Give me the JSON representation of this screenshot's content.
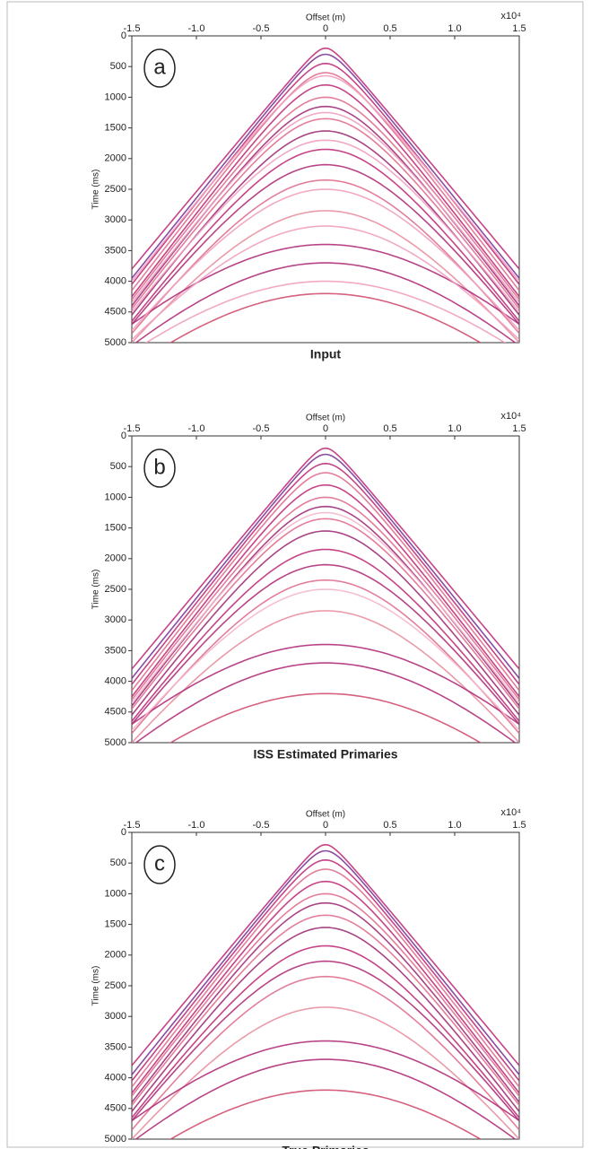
{
  "chart_data": [
    {
      "type": "gather",
      "panel_label": "a",
      "title": "Input",
      "xlabel": "Offset (m)",
      "ylabel": "Time (ms)",
      "x_multiplier": "x10⁴",
      "xlim": [
        -1.5,
        1.5
      ],
      "ylim": [
        0,
        5000
      ],
      "xticks": [
        -1.5,
        {
          "value": -1,
          "label": "-1.0"
        },
        -0.5,
        0,
        0.5,
        {
          "value": 1,
          "label": "1.0"
        },
        1.5
      ],
      "yticks": [
        0,
        500,
        1000,
        1500,
        2000,
        2500,
        3000,
        3500,
        4000,
        4500,
        5000
      ],
      "events": [
        {
          "t0": 200,
          "t_edge": 3800,
          "color": "#c0307a"
        },
        {
          "t0": 300,
          "t_edge": 3950,
          "color": "#7a3a9a"
        },
        {
          "t0": 450,
          "t_edge": 4050,
          "color": "#c0307a"
        },
        {
          "t0": 600,
          "t_edge": 4150,
          "color": "#e07090"
        },
        {
          "t0": 800,
          "t_edge": 4250,
          "color": "#c0307a"
        },
        {
          "t0": 1000,
          "t_edge": 4300,
          "color": "#e07090"
        },
        {
          "t0": 1150,
          "t_edge": 4400,
          "color": "#a0307a"
        },
        {
          "t0": 1350,
          "t_edge": 4450,
          "color": "#e07090"
        },
        {
          "t0": 1550,
          "t_edge": 4550,
          "color": "#a0307a"
        },
        {
          "t0": 1850,
          "t_edge": 4650,
          "color": "#c0307a"
        },
        {
          "t0": 2100,
          "t_edge": 4700,
          "color": "#b0307a"
        },
        {
          "t0": 2350,
          "t_edge": 4850,
          "color": "#e07090"
        },
        {
          "t0": 2850,
          "t_edge": 5000,
          "color": "#e890a0"
        },
        {
          "t0": 3400,
          "t_edge": 4700,
          "color": "#b0307a"
        },
        {
          "t0": 3700,
          "t_edge": 5050,
          "color": "#b0307a"
        },
        {
          "t0": 4200,
          "t_edge": 5400,
          "color": "#d05070"
        },
        {
          "t0": 650,
          "t_edge": 4000,
          "color": "#f0a0c0"
        },
        {
          "t0": 1250,
          "t_edge": 4350,
          "color": "#f0a0c0"
        },
        {
          "t0": 1700,
          "t_edge": 4500,
          "color": "#f0a0c0"
        },
        {
          "t0": 2500,
          "t_edge": 4800,
          "color": "#f0a0c0"
        },
        {
          "t0": 3100,
          "t_edge": 4950,
          "color": "#f0a0c0"
        },
        {
          "t0": 4000,
          "t_edge": 5150,
          "color": "#f0a0c0"
        }
      ]
    },
    {
      "type": "gather",
      "panel_label": "b",
      "title": "ISS Estimated Primaries",
      "xlabel": "Offset (m)",
      "ylabel": "Time (ms)",
      "x_multiplier": "x10⁴",
      "xlim": [
        -1.5,
        1.5
      ],
      "ylim": [
        0,
        5000
      ],
      "xticks": [
        -1.5,
        {
          "value": -1,
          "label": "-1.0"
        },
        -0.5,
        0,
        0.5,
        {
          "value": 1,
          "label": "1.0"
        },
        1.5
      ],
      "yticks": [
        0,
        500,
        1000,
        1500,
        2000,
        2500,
        3000,
        3500,
        4000,
        4500,
        5000
      ],
      "events": [
        {
          "t0": 200,
          "t_edge": 3800,
          "color": "#c0307a"
        },
        {
          "t0": 300,
          "t_edge": 3950,
          "color": "#7a3a9a"
        },
        {
          "t0": 450,
          "t_edge": 4050,
          "color": "#c0307a"
        },
        {
          "t0": 600,
          "t_edge": 4150,
          "color": "#e07090"
        },
        {
          "t0": 800,
          "t_edge": 4250,
          "color": "#c0307a"
        },
        {
          "t0": 1000,
          "t_edge": 4300,
          "color": "#e07090"
        },
        {
          "t0": 1150,
          "t_edge": 4400,
          "color": "#a0307a"
        },
        {
          "t0": 1350,
          "t_edge": 4450,
          "color": "#e07090"
        },
        {
          "t0": 1550,
          "t_edge": 4550,
          "color": "#a0307a"
        },
        {
          "t0": 1850,
          "t_edge": 4650,
          "color": "#c0307a"
        },
        {
          "t0": 2100,
          "t_edge": 4700,
          "color": "#b0307a"
        },
        {
          "t0": 2350,
          "t_edge": 4850,
          "color": "#e07090"
        },
        {
          "t0": 2850,
          "t_edge": 5000,
          "color": "#e890a0"
        },
        {
          "t0": 3400,
          "t_edge": 4700,
          "color": "#b0307a"
        },
        {
          "t0": 3700,
          "t_edge": 5050,
          "color": "#b0307a"
        },
        {
          "t0": 4200,
          "t_edge": 5400,
          "color": "#d05070"
        },
        {
          "t0": 1250,
          "t_edge": 4350,
          "color": "#f4b8cc"
        },
        {
          "t0": 2500,
          "t_edge": 4800,
          "color": "#f4b8cc"
        }
      ]
    },
    {
      "type": "gather",
      "panel_label": "c",
      "title": "True Primaries",
      "xlabel": "Offset (m)",
      "ylabel": "Time (ms)",
      "x_multiplier": "x10⁴",
      "xlim": [
        -1.5,
        1.5
      ],
      "ylim": [
        0,
        5000
      ],
      "xticks": [
        -1.5,
        {
          "value": -1,
          "label": "-1.0"
        },
        -0.5,
        0,
        0.5,
        {
          "value": 1,
          "label": "1.0"
        },
        1.5
      ],
      "yticks": [
        0,
        500,
        1000,
        1500,
        2000,
        2500,
        3000,
        3500,
        4000,
        4500,
        5000
      ],
      "events": [
        {
          "t0": 200,
          "t_edge": 3800,
          "color": "#c0307a"
        },
        {
          "t0": 300,
          "t_edge": 3950,
          "color": "#7a3a9a"
        },
        {
          "t0": 450,
          "t_edge": 4050,
          "color": "#c0307a"
        },
        {
          "t0": 600,
          "t_edge": 4150,
          "color": "#e07090"
        },
        {
          "t0": 800,
          "t_edge": 4250,
          "color": "#c0307a"
        },
        {
          "t0": 1000,
          "t_edge": 4300,
          "color": "#e07090"
        },
        {
          "t0": 1150,
          "t_edge": 4400,
          "color": "#a0307a"
        },
        {
          "t0": 1350,
          "t_edge": 4450,
          "color": "#e07090"
        },
        {
          "t0": 1550,
          "t_edge": 4550,
          "color": "#a0307a"
        },
        {
          "t0": 1850,
          "t_edge": 4650,
          "color": "#c0307a"
        },
        {
          "t0": 2100,
          "t_edge": 4700,
          "color": "#b0307a"
        },
        {
          "t0": 2350,
          "t_edge": 4850,
          "color": "#e07090"
        },
        {
          "t0": 2850,
          "t_edge": 5000,
          "color": "#e890a0"
        },
        {
          "t0": 3400,
          "t_edge": 4700,
          "color": "#b0307a"
        },
        {
          "t0": 3700,
          "t_edge": 5050,
          "color": "#b0307a"
        },
        {
          "t0": 4200,
          "t_edge": 5400,
          "color": "#d05070"
        }
      ]
    }
  ]
}
